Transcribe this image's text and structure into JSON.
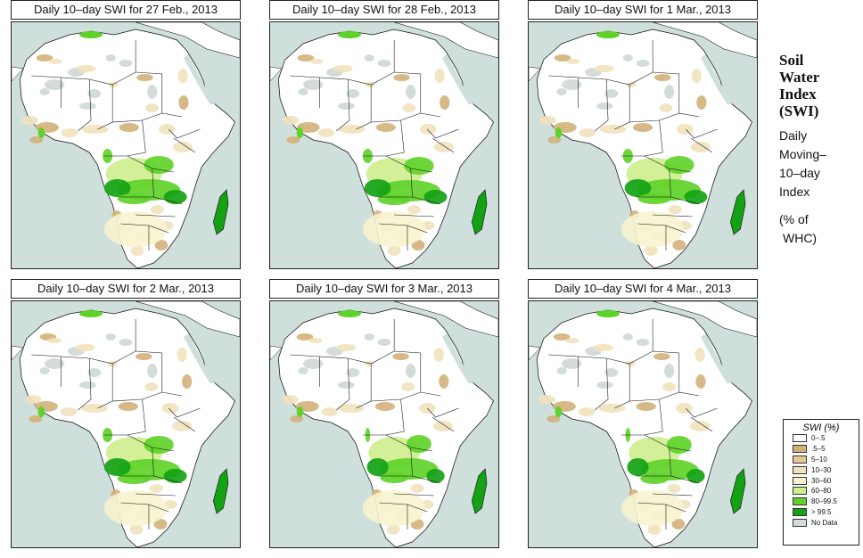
{
  "panels": [
    {
      "title": "Daily 10–day SWI for  27 Feb., 2013"
    },
    {
      "title": "Daily 10–day SWI for  28 Feb., 2013"
    },
    {
      "title": "Daily 10–day SWI for  1 Mar., 2013"
    },
    {
      "title": "Daily 10–day SWI for  2 Mar., 2013"
    },
    {
      "title": "Daily 10–day SWI for  3 Mar., 2013"
    },
    {
      "title": "Daily 10–day SWI for  4 Mar., 2013"
    }
  ],
  "side_title": {
    "line1": "Soil",
    "line2": "Water",
    "line3": "Index",
    "line4": "(SWI)",
    "line5": "Daily",
    "line6": "Moving–",
    "line7": "10–day",
    "line8": "Index",
    "line9": "(% of",
    "line10": "WHC)"
  },
  "legend": {
    "title": "SWI (%)",
    "items": [
      {
        "label": "0–.5",
        "color": "#ffffff"
      },
      {
        "label": ".5–5",
        "color": "#d2b179"
      },
      {
        "label": "5–10",
        "color": "#e3c797"
      },
      {
        "label": "10–30",
        "color": "#f1e2bc"
      },
      {
        "label": "30–60",
        "color": "#f7f3cf"
      },
      {
        "label": "60–80",
        "color": "#cfee8f"
      },
      {
        "label": "80–99.5",
        "color": "#5fd22a"
      },
      {
        "label": "> 99.5",
        "color": "#14a214"
      },
      {
        "label": "No Data",
        "color": "#d4dcd9"
      }
    ]
  },
  "colors": {
    "ocean": "#cfe0dc",
    "land": "#ffffff",
    "dry_tan": "#d2b179",
    "light_tan": "#f1e2bc",
    "cream": "#f7f3cf",
    "light_green": "#cfee8f",
    "green": "#5fd22a",
    "dark_green": "#14a214",
    "no_data": "#d4dcd9",
    "border": "#111111"
  }
}
